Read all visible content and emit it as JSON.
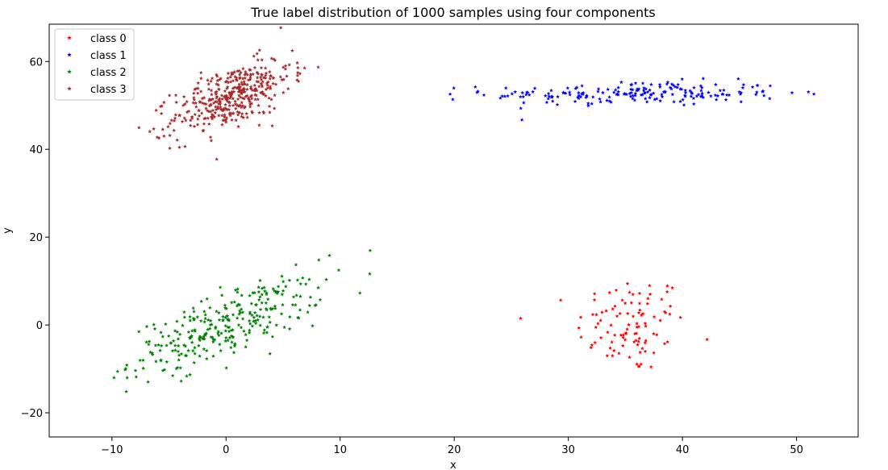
{
  "chart_data": {
    "type": "scatter",
    "title": "True label distribution of 1000 samples using four components",
    "xlabel": "x",
    "ylabel": "y",
    "xlim": [
      -15.5,
      55.4
    ],
    "ylim": [
      -25.5,
      68.5
    ],
    "xticks": [
      -10,
      0,
      10,
      20,
      30,
      40,
      50
    ],
    "yticks": [
      -20,
      0,
      20,
      40,
      60
    ],
    "xtick_labels": [
      "−10",
      "0",
      "10",
      "20",
      "30",
      "40",
      "50"
    ],
    "ytick_labels": [
      "−20",
      "0",
      "20",
      "40",
      "60"
    ],
    "grid": false,
    "legend_position": "top-left",
    "marker": "star",
    "series": [
      {
        "name": "class 0",
        "color": "#ff0000",
        "count": 100,
        "center": [
          35.5,
          0
        ],
        "spread": [
          2.4,
          5.6
        ],
        "corr": 0.05
      },
      {
        "name": "class 1",
        "color": "#0000ff",
        "count": 200,
        "center": [
          36,
          52.7
        ],
        "spread": [
          6.5,
          1.4
        ],
        "corr": 0.05
      },
      {
        "name": "class 2",
        "color": "#008000",
        "count": 300,
        "center": [
          0,
          0
        ],
        "spread": [
          4.2,
          5.4
        ],
        "corr": 0.75
      },
      {
        "name": "class 3",
        "color": "#a52a2a",
        "count": 400,
        "center": [
          0.5,
          52
        ],
        "spread": [
          2.6,
          4.2
        ],
        "corr": 0.6
      }
    ]
  }
}
